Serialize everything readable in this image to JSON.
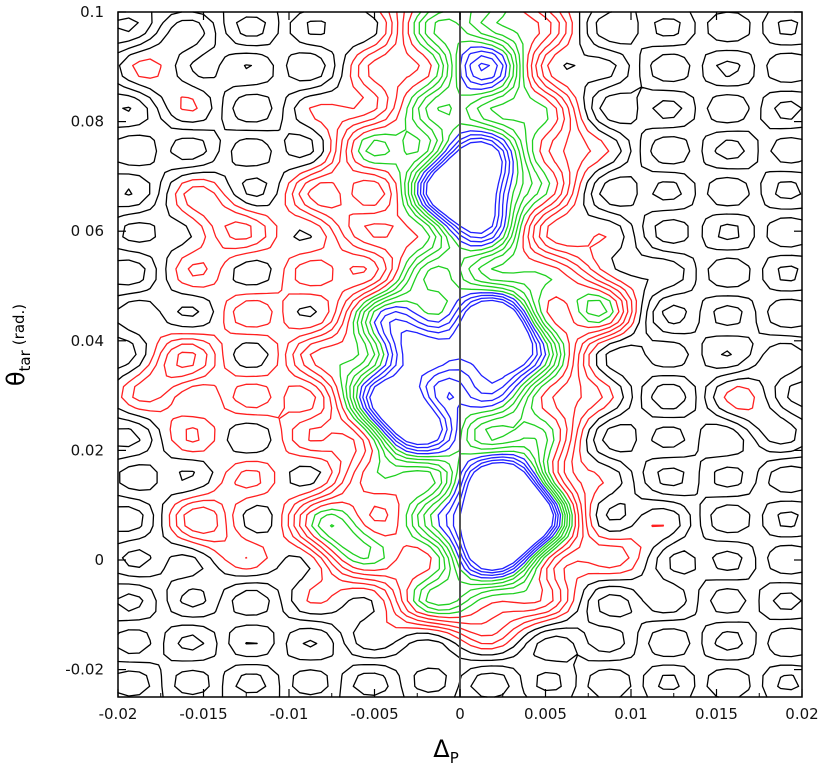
{
  "chart_data": {
    "type": "contour",
    "xlabel": "Δ",
    "xlabel_sub": "P",
    "ylabel": "θ",
    "ylabel_sub": "tar",
    "ylabel_unit": "(rad.)",
    "xlim": [
      -0.02,
      0.02
    ],
    "ylim": [
      -0.025,
      0.1
    ],
    "x_ticks": [
      "-0.02",
      "-0.015",
      "-0.01",
      "-0.005",
      "0",
      "0.005",
      "0.01",
      "0.015",
      "0.02"
    ],
    "y_ticks": [
      "-0.02",
      "0",
      "0.02",
      "0.04",
      "0 06",
      "0.08",
      "0.1"
    ],
    "x_tick_values": [
      -0.02,
      -0.015,
      -0.01,
      -0.005,
      0,
      0.005,
      0.01,
      0.015,
      0.02
    ],
    "y_tick_values": [
      -0.02,
      0,
      0.02,
      0.04,
      0.06,
      0.08,
      0.1
    ],
    "reference_line_x": 0,
    "level_colors": {
      "low": "#000000",
      "mid": "#ff2020",
      "high": "#20d020",
      "peak": "#2020ff"
    },
    "peaks": [
      {
        "x": 0.0005,
        "y": 0.068,
        "level": "peak"
      },
      {
        "x": 0.0025,
        "y": 0.04,
        "level": "peak"
      },
      {
        "x": -0.0035,
        "y": 0.027,
        "level": "peak"
      },
      {
        "x": 0.0025,
        "y": 0.006,
        "level": "peak"
      },
      {
        "x": -0.0035,
        "y": 0.042,
        "level": "high"
      },
      {
        "x": 0.0035,
        "y": 0.013,
        "level": "high"
      },
      {
        "x": -0.007,
        "y": 0.005,
        "level": "high"
      },
      {
        "x": 0.0055,
        "y": 0.006,
        "level": "mid"
      },
      {
        "x": -0.017,
        "y": 0.034,
        "level": "mid"
      },
      {
        "x": -0.017,
        "y": 0.018,
        "level": "low"
      },
      {
        "x": -0.0145,
        "y": 0.006,
        "level": "mid"
      },
      {
        "x": -0.0145,
        "y": 0.062,
        "level": "mid"
      },
      {
        "x": -0.01,
        "y": 0.048,
        "level": "low"
      },
      {
        "x": -0.0125,
        "y": 0.047,
        "level": "low"
      },
      {
        "x": -0.01,
        "y": 0.023,
        "level": "low"
      },
      {
        "x": -0.017,
        "y": 0.09,
        "level": "mid"
      },
      {
        "x": -0.0145,
        "y": 0.083,
        "level": "low"
      },
      {
        "x": -0.0055,
        "y": 0.077,
        "level": "mid"
      },
      {
        "x": 0.0015,
        "y": 0.09,
        "level": "mid"
      },
      {
        "x": 0.0055,
        "y": 0.075,
        "level": "mid"
      },
      {
        "x": 0.008,
        "y": 0.047,
        "level": "high"
      },
      {
        "x": 0.0105,
        "y": 0.055,
        "level": "low"
      },
      {
        "x": 0.014,
        "y": 0.038,
        "level": "low"
      },
      {
        "x": 0.0165,
        "y": 0.035,
        "level": "low"
      },
      {
        "x": 0.0175,
        "y": 0.028,
        "level": "mid"
      },
      {
        "x": 0.0105,
        "y": 0.002,
        "level": "mid"
      },
      {
        "x": 0.0165,
        "y": -0.008,
        "level": "low"
      },
      {
        "x": 0.0125,
        "y": 0.013,
        "level": "low"
      },
      {
        "x": -0.007,
        "y": 0.035,
        "level": "mid"
      },
      {
        "x": -0.0075,
        "y": 0.065,
        "level": "mid"
      },
      {
        "x": 0.006,
        "y": 0.03,
        "level": "mid"
      },
      {
        "x": -0.0185,
        "y": 0.003,
        "level": "low"
      },
      {
        "x": 0.018,
        "y": 0.075,
        "level": "low"
      }
    ]
  }
}
